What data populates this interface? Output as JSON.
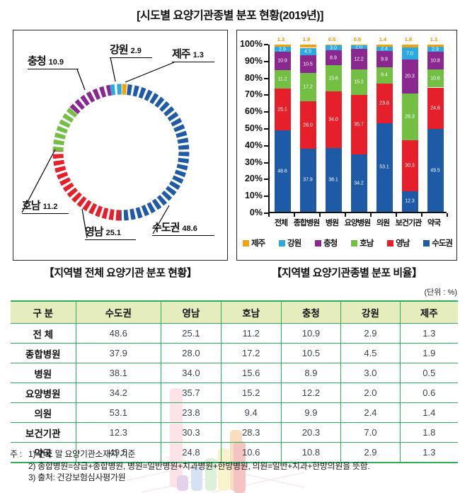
{
  "page": {
    "title": "[시도별 요양기관종별 분포 현황(2019년)]"
  },
  "captions": {
    "donut": "【지역별 전체 요양기관 분포 현황】",
    "bar": "【지역별 요양기관종별 분포 비율】"
  },
  "chart_data": [
    {
      "type": "pie",
      "variant": "dashed-donut-ring",
      "title": "지역별 전체 요양기관 분포 현황",
      "unit": "%",
      "start_angle_deg": 1,
      "clockwise": true,
      "segments": [
        {
          "name": "제주",
          "value": 1.3,
          "color": "#F2A20D"
        },
        {
          "name": "수도권",
          "value": 48.6,
          "color": "#1E5AA5"
        },
        {
          "name": "영남",
          "value": 25.1,
          "color": "#E6202B"
        },
        {
          "name": "호남",
          "value": 11.2,
          "color": "#72BF44"
        },
        {
          "name": "충청",
          "value": 10.9,
          "color": "#8B2890"
        },
        {
          "name": "강원",
          "value": 2.9,
          "color": "#2BA9E0"
        }
      ]
    },
    {
      "type": "bar",
      "variant": "stacked-100",
      "title": "지역별 요양기관종별 분포 비율",
      "unit": "%",
      "categories": [
        "전체",
        "종합병원",
        "병원",
        "요양병원",
        "의원",
        "보건기관",
        "약국"
      ],
      "stack_order_bottom_to_top": [
        "수도권",
        "영남",
        "호남",
        "충청",
        "강원",
        "제주"
      ],
      "series": [
        {
          "name": "수도권",
          "color": "#1E5AA5",
          "values": [
            48.6,
            37.9,
            38.1,
            34.2,
            53.1,
            12.3,
            49.5
          ]
        },
        {
          "name": "영남",
          "color": "#E6202B",
          "values": [
            25.1,
            28.0,
            34.0,
            35.7,
            23.8,
            30.3,
            24.8
          ]
        },
        {
          "name": "호남",
          "color": "#72BF44",
          "values": [
            11.2,
            17.2,
            15.6,
            15.2,
            9.4,
            28.3,
            10.6
          ]
        },
        {
          "name": "충청",
          "color": "#8B2890",
          "values": [
            10.9,
            10.5,
            8.9,
            12.2,
            9.9,
            20.3,
            10.8
          ]
        },
        {
          "name": "강원",
          "color": "#2BA9E0",
          "values": [
            2.9,
            4.5,
            3.0,
            2.0,
            2.4,
            7.0,
            2.9
          ]
        },
        {
          "name": "제주",
          "color": "#F2A20D",
          "values": [
            1.3,
            1.9,
            0.5,
            0.6,
            1.4,
            1.8,
            1.3
          ]
        }
      ],
      "ylim": [
        0,
        100
      ],
      "y_ticks": [
        "100%",
        "90%",
        "80%",
        "70%",
        "60%",
        "50%",
        "40%",
        "30%",
        "20%",
        "10%",
        "0%"
      ],
      "grid": false,
      "legend_position": "bottom",
      "legend_order": [
        "제주",
        "강원",
        "충청",
        "호남",
        "영남",
        "수도권"
      ]
    }
  ],
  "table": {
    "unit_label": "(단위 : %)",
    "headers": [
      "구 분",
      "수도권",
      "영남",
      "호남",
      "충청",
      "강원",
      "제주"
    ],
    "rows": [
      {
        "label": "전 체",
        "values": [
          "48.6",
          "25.1",
          "11.2",
          "10.9",
          "2.9",
          "1.3"
        ]
      },
      {
        "label": "종합병원",
        "values": [
          "37.9",
          "28.0",
          "17.2",
          "10.5",
          "4.5",
          "1.9"
        ]
      },
      {
        "label": "병원",
        "values": [
          "38.1",
          "34.0",
          "15.6",
          "8.9",
          "3.0",
          "0.5"
        ]
      },
      {
        "label": "요양병원",
        "values": [
          "34.2",
          "35.7",
          "15.2",
          "12.2",
          "2.0",
          "0.6"
        ]
      },
      {
        "label": "의원",
        "values": [
          "53.1",
          "23.8",
          "9.4",
          "9.9",
          "2.4",
          "1.4"
        ]
      },
      {
        "label": "보건기관",
        "values": [
          "12.3",
          "30.3",
          "28.3",
          "20.3",
          "7.0",
          "1.8"
        ]
      },
      {
        "label": "약국",
        "values": [
          "49.5",
          "24.8",
          "10.6",
          "10.8",
          "2.9",
          "1.3"
        ]
      }
    ]
  },
  "footnotes": {
    "prefix": "주 :",
    "items": [
      "1) 연도 말 요양기관소재지 기준",
      "2) 종합병원=상급+종합병원, 병원=일반병원+치과병원+한방병원, 의원=일반+치과+한방의원을 뜻함.",
      "3) 출처: 건강보험심사평가원"
    ]
  },
  "colors": {
    "table_line": "#2FAF5B",
    "table_header_bg": "#E4EDBB",
    "table_value_text": "#3C464E",
    "jeju_top_label": "#E39404",
    "axis": "#111111"
  }
}
